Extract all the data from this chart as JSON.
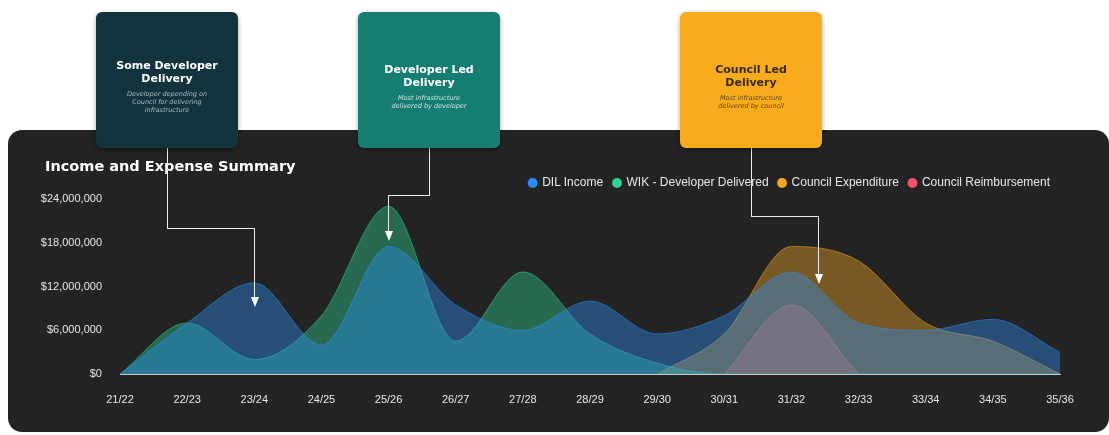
{
  "chart_data": {
    "type": "area",
    "title": "Income and Expense Summary",
    "categories": [
      "21/22",
      "22/23",
      "23/24",
      "24/25",
      "25/26",
      "26/27",
      "27/28",
      "28/29",
      "29/30",
      "30/31",
      "31/32",
      "32/33",
      "33/34",
      "34/35",
      "35/36"
    ],
    "series": [
      {
        "name": "DIL Income",
        "color": "#2b8ef5",
        "values": [
          0,
          7000000,
          12500000,
          4000000,
          17500000,
          9500000,
          6000000,
          10000000,
          5500000,
          8000000,
          14000000,
          7000000,
          6000000,
          7500000,
          3000000
        ]
      },
      {
        "name": "WIK - Developer Delivered",
        "color": "#2ed392",
        "values": [
          0,
          7000000,
          2000000,
          8000000,
          23000000,
          4500000,
          14000000,
          5500000,
          1500000,
          0,
          0,
          0,
          0,
          0,
          0
        ]
      },
      {
        "name": "Council Expenditure",
        "color": "#f7a823",
        "values": [
          null,
          null,
          null,
          null,
          null,
          null,
          null,
          null,
          0,
          5500000,
          17500000,
          15500000,
          7000000,
          4500000,
          0
        ]
      },
      {
        "name": "Council Reimbursement",
        "color": "#f2506b",
        "values": [
          null,
          null,
          null,
          null,
          null,
          null,
          null,
          null,
          null,
          0,
          9500000,
          0,
          null,
          null,
          null
        ]
      }
    ],
    "ylim": [
      0,
      24000000
    ],
    "yticks": [
      {
        "value": 0,
        "label": "$0"
      },
      {
        "value": 6000000,
        "label": "$6,000,000"
      },
      {
        "value": 12000000,
        "label": "$12,000,000"
      },
      {
        "value": 18000000,
        "label": "$18,000,000"
      },
      {
        "value": 24000000,
        "label": "$24,000,000"
      }
    ],
    "legend": "top right",
    "marker": "none",
    "annotations": [
      "Some Developer Delivery",
      "Developer depending on Council for delivering infrastructure",
      "Developer Led Delivery",
      "Most infrastructure delivered by developer",
      "Council Led Delivery",
      "Most infrastructure delivered by council"
    ]
  }
}
